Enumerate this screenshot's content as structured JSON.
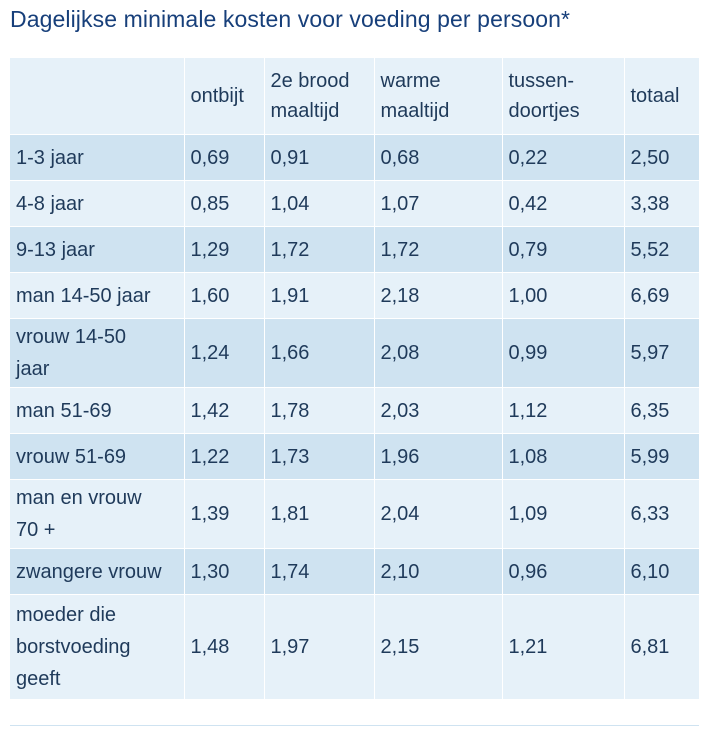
{
  "title": "Dagelijkse minimale kosten voor voeding per persoon*",
  "table": {
    "headers": [
      "",
      "ontbijt",
      "2e brood\nmaaltijd",
      "warme\nmaaltijd",
      "tussen-\ndoortjes",
      "totaal"
    ],
    "rows": [
      [
        "1-3 jaar",
        "0,69",
        "0,91",
        "0,68",
        "0,22",
        "2,50"
      ],
      [
        "4-8 jaar",
        "0,85",
        "1,04",
        "1,07",
        "0,42",
        "3,38"
      ],
      [
        "9-13 jaar",
        "1,29",
        "1,72",
        "1,72",
        "0,79",
        "5,52"
      ],
      [
        "man 14-50 jaar",
        "1,60",
        "1,91",
        "2,18",
        "1,00",
        "6,69"
      ],
      [
        "vrouw 14-50\njaar",
        "1,24",
        "1,66",
        "2,08",
        "0,99",
        "5,97"
      ],
      [
        "man 51-69",
        "1,42",
        "1,78",
        "2,03",
        "1,12",
        "6,35"
      ],
      [
        "vrouw 51-69",
        "1,22",
        "1,73",
        "1,96",
        "1,08",
        "5,99"
      ],
      [
        "man en vrouw\n70 +",
        "1,39",
        "1,81",
        "2,04",
        "1,09",
        "6,33"
      ],
      [
        "zwangere vrouw",
        "1,30",
        "1,74",
        "2,10",
        "0,96",
        "6,10"
      ],
      [
        "moeder die\nborstvoeding\ngeeft",
        "1,48",
        "1,97",
        "2,15",
        "1,21",
        "6,81"
      ]
    ]
  },
  "colors": {
    "title": "#173f7a",
    "text": "#1f3a5a",
    "row_dark": "#cfe3f1",
    "row_light": "#e6f1f9"
  }
}
